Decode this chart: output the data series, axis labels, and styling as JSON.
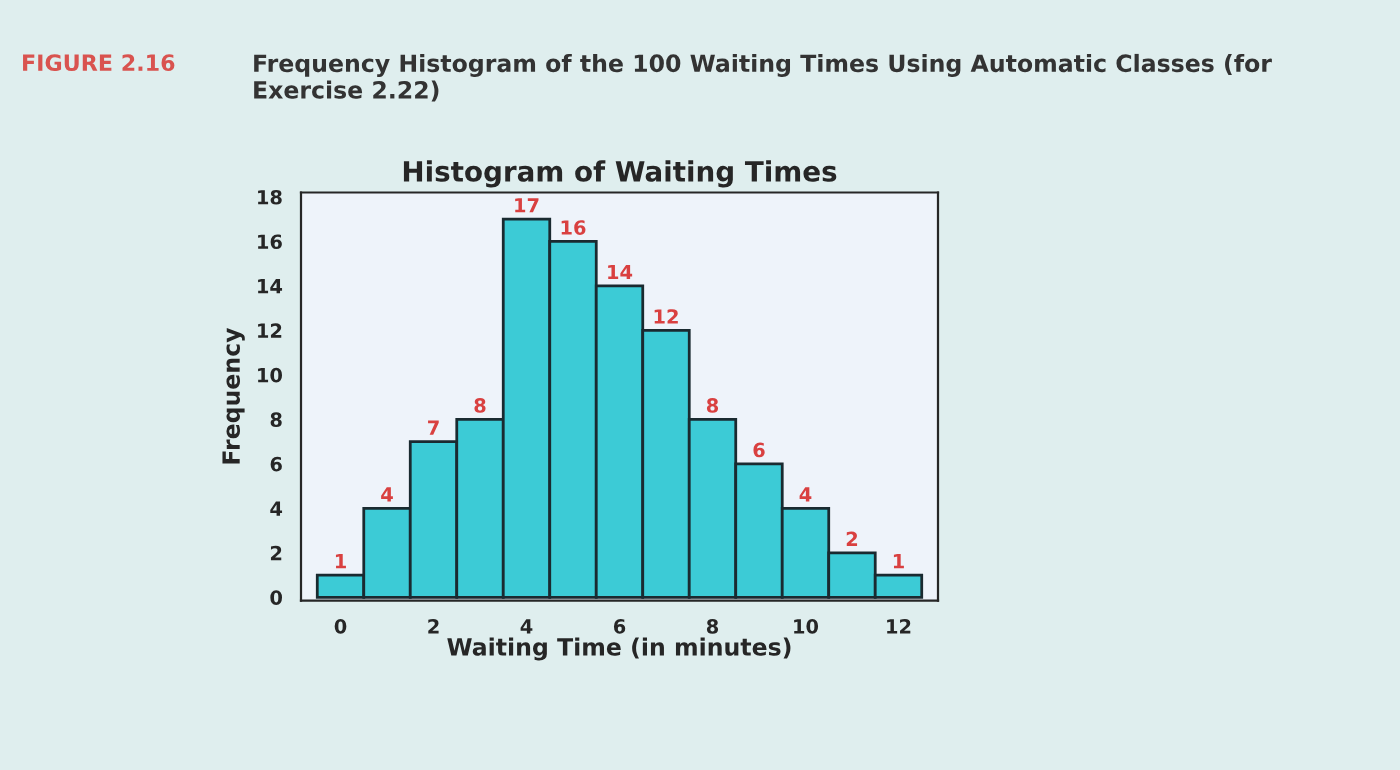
{
  "chart_data": {
    "type": "histogram",
    "title": "Histogram of Waiting Times",
    "xlabel": "Waiting Time (in minutes)",
    "ylabel": "Frequency",
    "annotations": [
      "FIGURE 2.16",
      "Frequency Histogram of the 100 Waiting Times Using Automatic Classes (for Exercise 2.22)"
    ],
    "bins": [
      -0.5,
      0.5,
      1.5,
      2.5,
      3.5,
      4.5,
      5.5,
      6.5,
      7.5,
      8.5,
      9.5,
      10.5,
      11.5,
      12.5
    ],
    "values": [
      1,
      4,
      7,
      8,
      17,
      16,
      14,
      12,
      8,
      6,
      4,
      2,
      1
    ],
    "color": "#3ccbd6",
    "data_labels": true,
    "xlim": [
      -0.85,
      12.85
    ],
    "ylim": [
      -0.15,
      18.2
    ],
    "xticks": [
      0,
      2,
      4,
      6,
      8,
      10,
      12
    ],
    "yticks": [
      0,
      2,
      4,
      6,
      8,
      10,
      12,
      14,
      16,
      18
    ],
    "grid": false
  }
}
